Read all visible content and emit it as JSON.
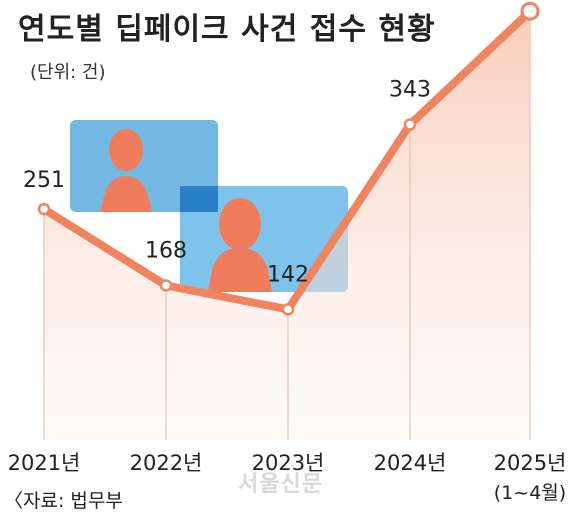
{
  "title": "연도별 딥페이크 사건 접수 현황",
  "unit": "(단위: 건)",
  "source": "〈자료: 법무부",
  "watermark": "서울신문",
  "colors": {
    "line": "#f0845f",
    "fill": "#f7c9b6",
    "photo": "#6fb8e6"
  },
  "chart_data": {
    "type": "area",
    "categories": [
      "2021년",
      "2022년",
      "2023년",
      "2024년",
      "2025년"
    ],
    "category_notes": [
      "",
      "",
      "",
      "",
      "(1~4월)"
    ],
    "values": [
      251,
      168,
      142,
      343,
      466
    ],
    "title": "연도별 딥페이크 사건 접수 현황",
    "xlabel": "",
    "ylabel": "",
    "unit": "건",
    "ylim": [
      0,
      500
    ],
    "grid": false,
    "legend": "none"
  }
}
